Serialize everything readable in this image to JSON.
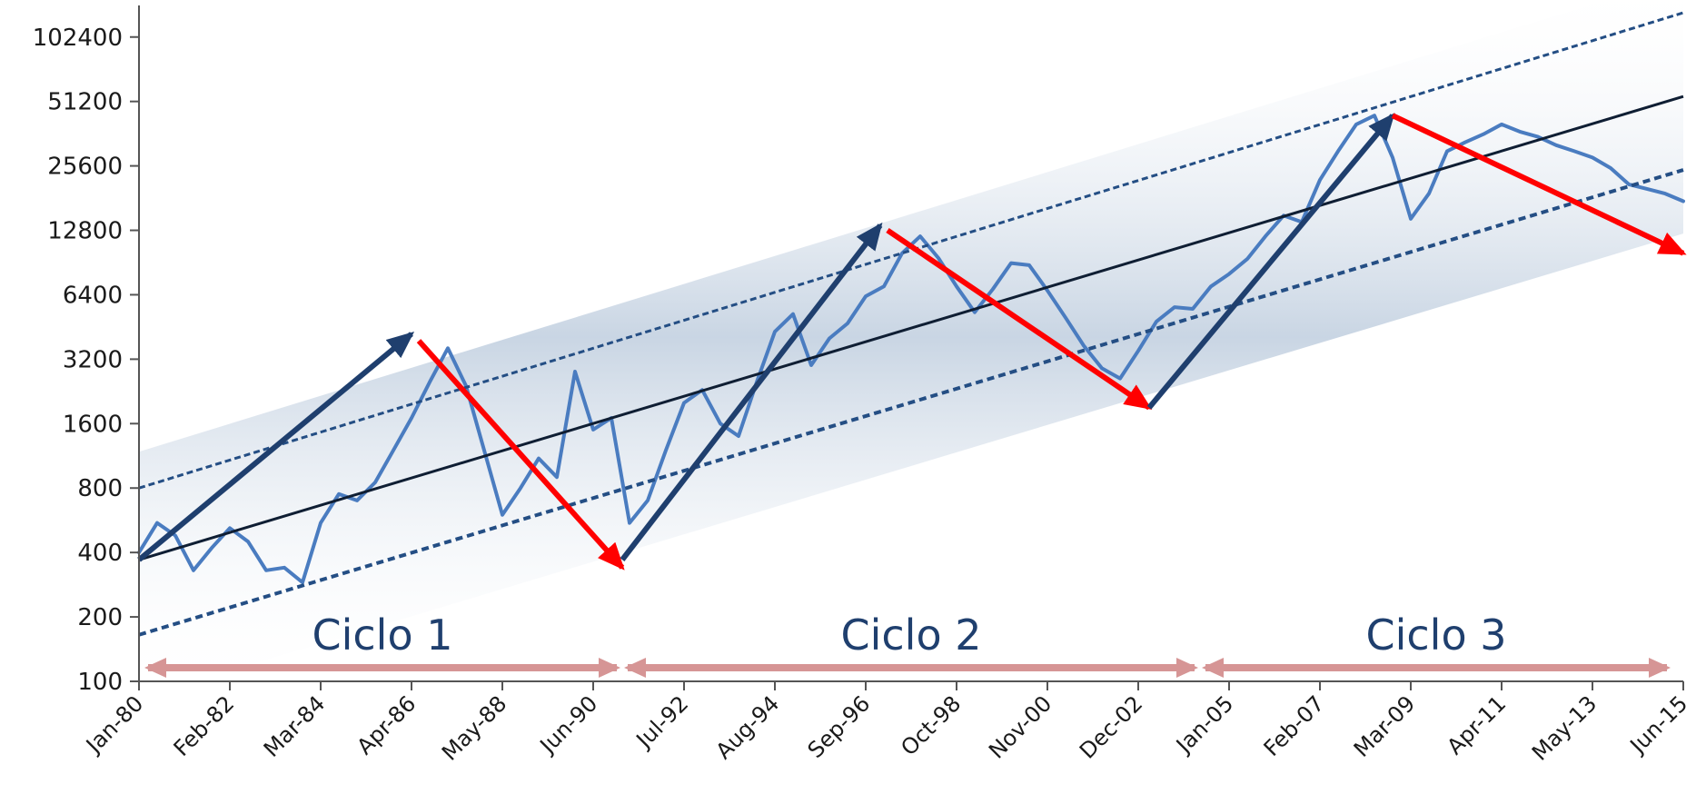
{
  "chart_data": {
    "type": "line",
    "title": "",
    "xlabel": "",
    "ylabel": "",
    "y_scale": "log2",
    "ylim": [
      100,
      133000
    ],
    "xlim": [
      "1980-01",
      "2015-06"
    ],
    "grid": false,
    "legend": "none",
    "y_ticks": [
      100,
      200,
      400,
      800,
      1600,
      3200,
      6400,
      12800,
      25600,
      51200,
      102400
    ],
    "y_tick_labels": [
      "100",
      "200",
      "400",
      "800",
      "1600",
      "3200",
      "6400",
      "12800",
      "25600",
      "51200",
      "102400"
    ],
    "x_ticks": [
      "1980-01",
      "1982-02",
      "1984-03",
      "1986-04",
      "1988-05",
      "1990-06",
      "1992-07",
      "1994-08",
      "1996-09",
      "1998-10",
      "2000-11",
      "2002-12",
      "2005-01",
      "2007-02",
      "2009-03",
      "2011-04",
      "2013-05",
      "2015-06"
    ],
    "x_tick_labels": [
      "Jan-80",
      "Feb-82",
      "Mar-84",
      "Apr-86",
      "May-88",
      "Jun-90",
      "Jul-92",
      "Aug-94",
      "Sep-96",
      "Oct-98",
      "Nov-00",
      "Dec-02",
      "Jan-05",
      "Feb-07",
      "Mar-09",
      "Apr-11",
      "May-13",
      "Jun-15"
    ],
    "series": [
      {
        "x": [
          "1980-01",
          "1980-06",
          "1980-11",
          "1981-04",
          "1981-09",
          "1982-02",
          "1982-07",
          "1982-12",
          "1983-05",
          "1983-10",
          "1984-03",
          "1984-08",
          "1985-01",
          "1985-06",
          "1985-11",
          "1986-04",
          "1986-09",
          "1987-02",
          "1987-07",
          "1987-12",
          "1988-05",
          "1988-10",
          "1989-03",
          "1989-08",
          "1990-01",
          "1990-06",
          "1990-11",
          "1991-04",
          "1991-09",
          "1992-02",
          "1992-07",
          "1992-12",
          "1993-05",
          "1993-10",
          "1994-03",
          "1994-08",
          "1995-01",
          "1995-06",
          "1995-11",
          "1996-04",
          "1996-09",
          "1997-02",
          "1997-07",
          "1997-12",
          "1998-05",
          "1998-10",
          "1999-03",
          "1999-08",
          "2000-01",
          "2000-06",
          "2000-11",
          "2001-04",
          "2001-09",
          "2002-02",
          "2002-07",
          "2002-12",
          "2003-05",
          "2003-10",
          "2004-03",
          "2004-08",
          "2005-01",
          "2005-06",
          "2005-11",
          "2006-04",
          "2006-09",
          "2007-02",
          "2007-07",
          "2007-12",
          "2008-05",
          "2008-10",
          "2009-03",
          "2009-08",
          "2010-01",
          "2010-06",
          "2010-11",
          "2011-04",
          "2011-09",
          "2012-02",
          "2012-07",
          "2012-12",
          "2013-05",
          "2013-10",
          "2014-03",
          "2014-08",
          "2015-01",
          "2015-06"
        ],
        "values": [
          400,
          550,
          480,
          330,
          420,
          520,
          450,
          330,
          340,
          290,
          550,
          750,
          700,
          850,
          1200,
          1700,
          2500,
          3600,
          2400,
          1200,
          600,
          800,
          1100,
          900,
          2800,
          1500,
          1700,
          550,
          700,
          1200,
          2000,
          2300,
          1600,
          1400,
          2500,
          4300,
          5200,
          3000,
          4000,
          4700,
          6300,
          7000,
          10000,
          12000,
          9500,
          7000,
          5300,
          6800,
          9000,
          8800,
          6700,
          5000,
          3700,
          2900,
          2600,
          3500,
          4800,
          5600,
          5500,
          7000,
          8000,
          9400,
          12000,
          15000,
          14000,
          22000,
          30000,
          40000,
          44000,
          28000,
          14500,
          19000,
          30000,
          33000,
          36000,
          40000,
          37000,
          35000,
          32000,
          30000,
          28000,
          25000,
          21000,
          20000,
          19000,
          17500
        ]
      },
      {
        "name": "trend",
        "x": [
          "1980-01",
          "2015-06"
        ],
        "values": [
          370,
          54000
        ]
      },
      {
        "name": "upper band",
        "x": [
          "1980-01",
          "2015-06"
        ],
        "values": [
          800,
          133000
        ]
      },
      {
        "name": "lower band",
        "x": [
          "1980-01",
          "2015-06"
        ],
        "values": [
          165,
          24500
        ]
      }
    ],
    "trend_arrows": [
      {
        "direction": "up",
        "from": [
          "1980-01",
          370
        ],
        "to": [
          "1986-04",
          4200
        ]
      },
      {
        "direction": "down",
        "from": [
          "1986-06",
          3900
        ],
        "to": [
          "1991-02",
          340
        ]
      },
      {
        "direction": "up",
        "from": [
          "1991-02",
          370
        ],
        "to": [
          "1997-01",
          13500
        ]
      },
      {
        "direction": "down",
        "from": [
          "1997-03",
          12800
        ],
        "to": [
          "2003-03",
          1900
        ]
      },
      {
        "direction": "up",
        "from": [
          "2003-03",
          1900
        ],
        "to": [
          "2008-10",
          44000
        ]
      },
      {
        "direction": "down",
        "from": [
          "2008-10",
          44000
        ],
        "to": [
          "2015-06",
          10000
        ]
      }
    ],
    "cycles": [
      {
        "label": "Ciclo 1",
        "start": "1980-01",
        "end": "1991-02"
      },
      {
        "label": "Ciclo 2",
        "start": "1991-02",
        "end": "2004-05"
      },
      {
        "label": "Ciclo 3",
        "start": "2004-05",
        "end": "2015-03"
      }
    ],
    "colors": {
      "series": "#4a7cc0",
      "trend": "#0f1e33",
      "bands": "#244e84",
      "band_fill": "#c6d3e2",
      "arrow_up": "#1f3f6e",
      "arrow_down": "#ff0000",
      "cycle_arrow": "#d69595",
      "cycle_text": "#1f3f6e",
      "axis": "#555555"
    }
  }
}
